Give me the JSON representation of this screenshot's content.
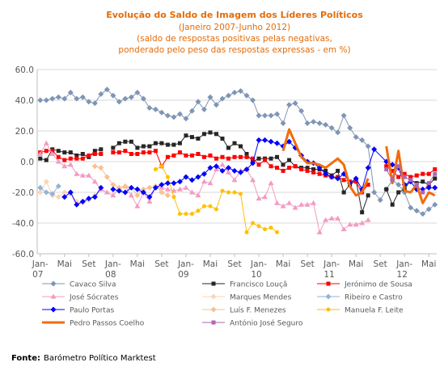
{
  "chart_data": {
    "type": "line",
    "title": "Evolução do Saldo  de Imagem dos Líderes Políticos",
    "subtitle_lines": [
      "(Janeiro 2007-Junho 2012)",
      "(saldo de respostas positivas pelas negativas,",
      "ponderado pelo peso das respostas expressas - em %)"
    ],
    "ylim": [
      -60,
      60
    ],
    "ytick_labels": [
      "60.0",
      "40.0",
      "20.0",
      "0.0",
      "-20.0",
      "-40.0",
      "-60.0"
    ],
    "yticks": [
      60,
      40,
      20,
      0,
      -20,
      -40,
      -60
    ],
    "x_range": [
      1,
      66
    ],
    "x_ticks": [
      {
        "x": 1,
        "label": "Jan-",
        "label2": "07"
      },
      {
        "x": 5,
        "label": "Mai",
        "label2": ""
      },
      {
        "x": 9,
        "label": "Set",
        "label2": ""
      },
      {
        "x": 13,
        "label": "Jan-",
        "label2": "08"
      },
      {
        "x": 17,
        "label": "Mai",
        "label2": ""
      },
      {
        "x": 21,
        "label": "Set",
        "label2": ""
      },
      {
        "x": 25,
        "label": "Jan-",
        "label2": "09"
      },
      {
        "x": 29,
        "label": "Mai",
        "label2": ""
      },
      {
        "x": 33,
        "label": "Set",
        "label2": ""
      },
      {
        "x": 37,
        "label": "Jan-",
        "label2": "10"
      },
      {
        "x": 41,
        "label": "Mai",
        "label2": ""
      },
      {
        "x": 45,
        "label": "Set",
        "label2": ""
      },
      {
        "x": 49,
        "label": "Jan-",
        "label2": "11"
      },
      {
        "x": 53,
        "label": "Mai",
        "label2": ""
      },
      {
        "x": 57,
        "label": "Set",
        "label2": ""
      },
      {
        "x": 61,
        "label": "Jan-",
        "label2": "12"
      },
      {
        "x": 65,
        "label": "Mai",
        "label2": ""
      }
    ],
    "grid": "horizontal",
    "legend_position": "bottom",
    "series": [
      {
        "name": "Cavaco Silva",
        "color": "#7F95B5",
        "marker": "diamond",
        "width": 1,
        "x": [
          1,
          2,
          3,
          4,
          5,
          6,
          7,
          8,
          9,
          10,
          11,
          12,
          13,
          14,
          15,
          16,
          17,
          18,
          19,
          20,
          21,
          22,
          23,
          24,
          25,
          26,
          27,
          28,
          29,
          30,
          31,
          32,
          33,
          34,
          35,
          36,
          37,
          38,
          39,
          40,
          41,
          42,
          43,
          44,
          45,
          46,
          47,
          48,
          49,
          50,
          51,
          52,
          53,
          54,
          55,
          56,
          57,
          58,
          59,
          60,
          61,
          62,
          63,
          64,
          65,
          66
        ],
        "y": [
          40,
          40,
          41,
          42,
          41,
          45,
          41,
          42,
          39,
          38,
          44,
          47,
          43,
          39,
          41,
          42,
          45,
          41,
          35,
          34,
          32,
          30,
          29,
          31,
          28,
          33,
          39,
          34,
          42,
          37,
          41,
          43,
          45,
          46,
          43,
          40,
          30,
          30,
          30,
          31,
          25,
          37,
          38,
          33,
          25,
          26,
          25,
          24,
          22,
          19,
          30,
          22,
          16,
          14,
          10,
          -20,
          -25,
          -18,
          -12,
          -15,
          -20,
          -30,
          -32,
          -34,
          -31,
          -28
        ]
      },
      {
        "name": "Francisco Louçã",
        "color": "#262626",
        "marker": "square",
        "width": 1,
        "x": [
          1,
          2,
          3,
          4,
          5,
          6,
          7,
          8,
          9,
          10,
          11,
          12,
          13,
          14,
          15,
          16,
          17,
          18,
          19,
          20,
          21,
          22,
          23,
          24,
          25,
          26,
          27,
          28,
          29,
          30,
          31,
          32,
          33,
          34,
          35,
          36,
          37,
          38,
          39,
          40,
          41,
          42,
          43,
          44,
          45,
          46,
          47,
          48,
          49,
          50,
          51,
          52,
          53,
          54,
          55,
          56,
          58,
          59,
          60,
          61,
          62,
          63,
          64,
          65,
          66
        ],
        "y": [
          2,
          1,
          8,
          7,
          6,
          6,
          4,
          5,
          3,
          7,
          8,
          null,
          9,
          12,
          13,
          13,
          9,
          10,
          10,
          12,
          12,
          11,
          11,
          12,
          17,
          16,
          15,
          18,
          19,
          18,
          15,
          9,
          12,
          10,
          5,
          0,
          2,
          2,
          2,
          3,
          -2,
          1,
          -3,
          -4,
          -4,
          -5,
          -5,
          -6,
          -9,
          -6,
          -20,
          -15,
          -12,
          -33,
          -22,
          null,
          -18,
          -28,
          -20,
          -18,
          -12,
          -14,
          -13,
          -15,
          -11
        ]
      },
      {
        "name": "Jerónimo de Sousa",
        "color": "#FF0000",
        "marker": "square",
        "width": 1,
        "x": [
          1,
          2,
          3,
          4,
          5,
          6,
          7,
          8,
          9,
          10,
          11,
          12,
          13,
          14,
          15,
          16,
          17,
          18,
          19,
          20,
          21,
          22,
          23,
          24,
          25,
          26,
          27,
          28,
          29,
          30,
          31,
          32,
          33,
          34,
          35,
          36,
          37,
          38,
          39,
          40,
          41,
          42,
          43,
          44,
          45,
          46,
          47,
          48,
          49,
          50,
          51,
          52,
          53,
          54,
          55,
          56,
          58,
          59,
          60,
          61,
          62,
          63,
          64,
          65,
          66
        ],
        "y": [
          6,
          7,
          7,
          3,
          1,
          2,
          2,
          2,
          4,
          5,
          5,
          null,
          6,
          6,
          7,
          5,
          5,
          6,
          6,
          7,
          -3,
          3,
          4,
          6,
          4,
          4,
          5,
          3,
          4,
          2,
          3,
          2,
          3,
          3,
          3,
          2,
          -2,
          1,
          -3,
          -4,
          -6,
          -4,
          -3,
          -5,
          -6,
          -7,
          -8,
          -9,
          -10,
          -10,
          -12,
          -13,
          -13,
          -20,
          -15,
          null,
          -3,
          -6,
          -10,
          -8,
          -10,
          -9,
          -8,
          -8,
          -5
        ]
      },
      {
        "name": "José Sócrates",
        "color": "#F49AC2",
        "marker": "triangle",
        "width": 1,
        "x": [
          1,
          2,
          3,
          4,
          5,
          6,
          7,
          8,
          9,
          10,
          11,
          12,
          13,
          14,
          15,
          16,
          17,
          18,
          19,
          20,
          21,
          22,
          23,
          24,
          25,
          26,
          27,
          28,
          29,
          30,
          31,
          32,
          33,
          34,
          35,
          36,
          37,
          38,
          39,
          40,
          41,
          42,
          43,
          44,
          45,
          46,
          47,
          48,
          49,
          50,
          51,
          52,
          53,
          54,
          55,
          56
        ],
        "y": [
          5,
          12,
          5,
          0,
          -3,
          -2,
          -8,
          -9,
          -9,
          -13,
          -18,
          -20,
          -22,
          -17,
          -16,
          -22,
          -29,
          -20,
          -26,
          -16,
          -17,
          -18,
          -19,
          -18,
          -17,
          -20,
          -22,
          -13,
          -14,
          -5,
          -2,
          -7,
          -12,
          -6,
          -5,
          -12,
          -24,
          -23,
          -14,
          -27,
          -29,
          -27,
          -30,
          -28,
          -28,
          -27,
          -46,
          -38,
          -37,
          -37,
          -44,
          -41,
          -41,
          -40,
          -38,
          null
        ]
      },
      {
        "name": "Marques Mendes",
        "color": "#FBD5B5",
        "marker": "diamond",
        "width": 1,
        "x": [
          1,
          2,
          3,
          4,
          5,
          6,
          7,
          8,
          9,
          10
        ],
        "y": [
          -20,
          -13,
          -22,
          -23,
          -20,
          -21,
          -26,
          -27,
          -25,
          -22
        ]
      },
      {
        "name": "Ribeiro e Castro",
        "color": "#95B3D7",
        "marker": "diamond",
        "width": 1,
        "x": [
          1,
          2,
          3,
          4
        ],
        "y": [
          -17,
          -20,
          -21,
          -16
        ]
      },
      {
        "name": "Luís F. Menezes",
        "color": "#FAC090",
        "marker": "diamond",
        "width": 1,
        "x": [
          10,
          11,
          12,
          13,
          14,
          15,
          16,
          17,
          18,
          19,
          20,
          21,
          22
        ],
        "y": [
          -3,
          -4,
          -10,
          -15,
          -17,
          -16,
          -17,
          -22,
          -18,
          -17,
          -16,
          -20,
          -22
        ]
      },
      {
        "name": "Manuela F. Leite",
        "color": "#FFC000",
        "marker": "circle",
        "width": 1,
        "x": [
          20,
          21,
          22,
          23,
          24,
          25,
          26,
          27,
          28,
          29,
          30,
          31,
          32,
          33,
          34,
          35,
          36,
          37,
          38,
          39,
          40,
          41,
          42
        ],
        "y": [
          -5,
          -3,
          -10,
          -23,
          -34,
          -34,
          -34,
          -32,
          -29,
          -29,
          -31,
          -19,
          -20,
          -20,
          -21,
          -46,
          -40,
          -42,
          -44,
          -43,
          -46,
          null,
          null
        ]
      },
      {
        "name": "Paulo Portas",
        "color": "#0000FF",
        "marker": "diamond",
        "width": 1,
        "x": [
          5,
          6,
          7,
          8,
          9,
          10,
          11,
          12,
          13,
          14,
          15,
          16,
          17,
          18,
          19,
          20,
          21,
          22,
          23,
          24,
          25,
          26,
          27,
          28,
          29,
          30,
          31,
          32,
          33,
          34,
          35,
          36,
          37,
          38,
          39,
          40,
          41,
          42,
          43,
          44,
          45,
          46,
          47,
          48,
          49,
          50,
          51,
          52,
          53,
          54,
          55,
          56,
          58,
          59,
          60,
          61,
          62,
          63,
          64,
          65,
          66
        ],
        "y": [
          -23,
          -20,
          -28,
          -26,
          -24,
          -23,
          -17,
          null,
          -18,
          -19,
          -20,
          -17,
          -18,
          -20,
          -23,
          -17,
          -15,
          -14,
          -14,
          -13,
          -10,
          -12,
          -10,
          -8,
          -4,
          -3,
          -6,
          -4,
          -6,
          -7,
          -5,
          -1,
          14,
          14,
          13,
          12,
          10,
          13,
          9,
          4,
          0,
          -1,
          -4,
          -8,
          -10,
          -11,
          -8,
          -14,
          -11,
          -18,
          -4,
          8,
          0,
          -2,
          -4,
          -15,
          -13,
          -18,
          -18,
          -17,
          -17
        ]
      },
      {
        "name": "Pedro Passos Coelho",
        "color": "#F36C0A",
        "marker": "none",
        "width": 3,
        "x": [
          41,
          42,
          43,
          44,
          45,
          46,
          47,
          48,
          49,
          50,
          51,
          52,
          53,
          54,
          55,
          56,
          58,
          59,
          60,
          61,
          62,
          63,
          64,
          65,
          66
        ],
        "y": [
          7,
          21,
          12,
          3,
          -1,
          -1,
          -2,
          -4,
          -1,
          2,
          -2,
          -16,
          -22,
          -20,
          -11,
          null,
          10,
          -14,
          7,
          -19,
          -20,
          -15,
          -27,
          -20,
          -22
        ]
      },
      {
        "name": "António José Seguro",
        "color": "#B065B0",
        "marker": "square",
        "width": 1,
        "x": [
          58,
          59,
          60,
          61,
          62,
          63,
          64,
          65,
          66
        ],
        "y": [
          -5,
          -12,
          -3,
          -10,
          -12,
          -15,
          -20,
          -14,
          -8
        ]
      }
    ],
    "legend": {
      "columns": 3,
      "items": [
        {
          "name": "Cavaco Silva",
          "color": "#7F95B5",
          "marker": "diamond",
          "width": 1
        },
        {
          "name": "Francisco Louçã",
          "color": "#262626",
          "marker": "square",
          "width": 1
        },
        {
          "name": "Jerónimo de Sousa",
          "color": "#FF0000",
          "marker": "square",
          "width": 1
        },
        {
          "name": "José Sócrates",
          "color": "#F49AC2",
          "marker": "triangle",
          "width": 1
        },
        {
          "name": "Marques Mendes",
          "color": "#FBD5B5",
          "marker": "diamond",
          "width": 1
        },
        {
          "name": "Ribeiro e Castro",
          "color": "#95B3D7",
          "marker": "diamond",
          "width": 1
        },
        {
          "name": "Paulo Portas",
          "color": "#0000FF",
          "marker": "diamond",
          "width": 1
        },
        {
          "name": "Luís F. Menezes",
          "color": "#FAC090",
          "marker": "diamond",
          "width": 1
        },
        {
          "name": "Manuela F. Leite",
          "color": "#FFC000",
          "marker": "circle",
          "width": 1
        },
        {
          "name": "Pedro Passos Coelho",
          "color": "#F36C0A",
          "marker": "none",
          "width": 3
        },
        {
          "name": "António José Seguro",
          "color": "#B065B0",
          "marker": "square",
          "width": 1
        }
      ]
    }
  },
  "source": {
    "label": "Fonte:",
    "text": "Barómetro Político Marktest"
  }
}
